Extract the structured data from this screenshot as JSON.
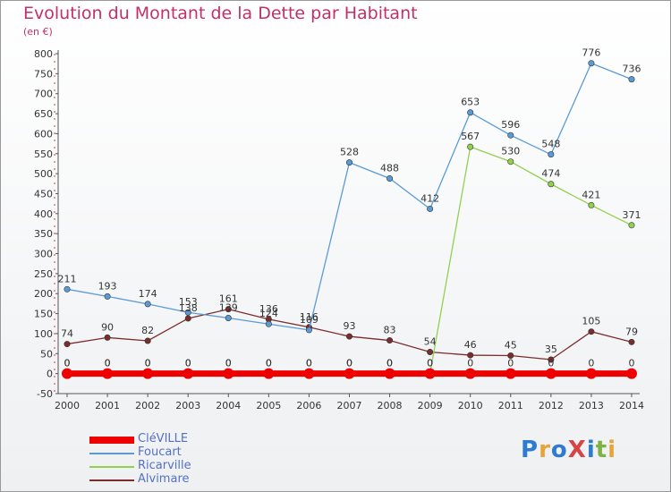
{
  "chart_data": {
    "type": "line",
    "title": "Evolution du Montant de la Dette par Habitant",
    "subtitle": "(en €)",
    "x": [
      "2000",
      "2001",
      "2002",
      "2003",
      "2004",
      "2005",
      "2006",
      "2007",
      "2008",
      "2009",
      "2010",
      "2011",
      "2012",
      "2013",
      "2014"
    ],
    "ylim": [
      -50,
      800
    ],
    "yticks": [
      -50,
      0,
      50,
      100,
      150,
      200,
      250,
      300,
      350,
      400,
      450,
      500,
      550,
      600,
      650,
      700,
      750,
      800
    ],
    "grid": false,
    "legend_position": "bottom-left",
    "series": [
      {
        "name": "CléVILLE",
        "color": "#ee0000",
        "values": [
          0,
          0,
          0,
          0,
          0,
          0,
          0,
          0,
          0,
          0,
          0,
          0,
          0,
          0,
          0
        ]
      },
      {
        "name": "Foucart",
        "color": "#5b9bd5",
        "values": [
          211,
          193,
          174,
          153,
          139,
          124,
          109,
          528,
          488,
          412,
          653,
          596,
          548,
          776,
          736
        ]
      },
      {
        "name": "Ricarville",
        "color": "#92d050",
        "values": [
          0,
          0,
          0,
          0,
          0,
          0,
          0,
          0,
          0,
          0,
          567,
          530,
          474,
          421,
          371
        ]
      },
      {
        "name": "Alvimare",
        "color": "#7b2c2c",
        "values": [
          74,
          90,
          82,
          138,
          161,
          136,
          116,
          93,
          83,
          54,
          46,
          45,
          35,
          105,
          79
        ]
      }
    ]
  },
  "logo": {
    "text": "ProXiti"
  }
}
